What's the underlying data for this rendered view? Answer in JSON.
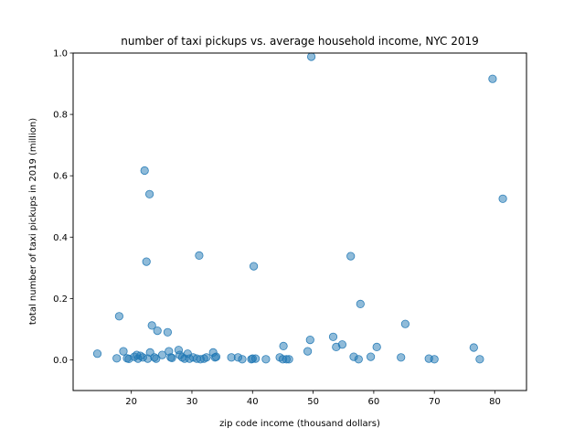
{
  "chart_data": {
    "type": "scatter",
    "title": "number of taxi pickups vs. average household income, NYC 2019",
    "xlabel": "zip code income (thousand dollars)",
    "ylabel": "total number of taxi pickups in 2019 (million)",
    "xlim": [
      10.4,
      85.2
    ],
    "ylim": [
      -0.1,
      1.0
    ],
    "xticks": [
      "20",
      "30",
      "40",
      "50",
      "60",
      "70",
      "80"
    ],
    "xtick_values": [
      20,
      30,
      40,
      50,
      60,
      70,
      80
    ],
    "yticks": [
      "0.0",
      "0.2",
      "0.4",
      "0.6",
      "0.8",
      "1.0"
    ],
    "ytick_values": [
      0.0,
      0.2,
      0.4,
      0.6,
      0.8,
      1.0
    ],
    "grid": false,
    "point_color": "#1f77b4",
    "point_alpha": 0.5,
    "points": [
      [
        14.4,
        0.02
      ],
      [
        17.6,
        0.005
      ],
      [
        18.0,
        0.142
      ],
      [
        18.7,
        0.028
      ],
      [
        19.3,
        0.005
      ],
      [
        19.6,
        0.003
      ],
      [
        20.5,
        0.01
      ],
      [
        20.9,
        0.016
      ],
      [
        21.1,
        0.004
      ],
      [
        21.5,
        0.013
      ],
      [
        21.9,
        0.008
      ],
      [
        22.2,
        0.617
      ],
      [
        22.5,
        0.32
      ],
      [
        22.7,
        0.004
      ],
      [
        23.0,
        0.54
      ],
      [
        23.1,
        0.024
      ],
      [
        23.4,
        0.112
      ],
      [
        23.8,
        0.008
      ],
      [
        24.1,
        0.004
      ],
      [
        24.3,
        0.095
      ],
      [
        25.1,
        0.016
      ],
      [
        26.0,
        0.09
      ],
      [
        26.2,
        0.028
      ],
      [
        26.5,
        0.008
      ],
      [
        26.7,
        0.006
      ],
      [
        27.8,
        0.032
      ],
      [
        28.0,
        0.016
      ],
      [
        28.4,
        0.008
      ],
      [
        28.8,
        0.004
      ],
      [
        29.3,
        0.02
      ],
      [
        29.6,
        0.004
      ],
      [
        30.2,
        0.008
      ],
      [
        30.8,
        0.004
      ],
      [
        31.2,
        0.34
      ],
      [
        31.4,
        0.002
      ],
      [
        32.0,
        0.004
      ],
      [
        32.4,
        0.008
      ],
      [
        33.5,
        0.024
      ],
      [
        33.8,
        0.008
      ],
      [
        34.0,
        0.01
      ],
      [
        36.5,
        0.008
      ],
      [
        37.6,
        0.008
      ],
      [
        38.3,
        0.002
      ],
      [
        39.8,
        0.002
      ],
      [
        40.0,
        0.004
      ],
      [
        40.2,
        0.305
      ],
      [
        40.5,
        0.004
      ],
      [
        42.2,
        0.002
      ],
      [
        44.5,
        0.008
      ],
      [
        45.0,
        0.002
      ],
      [
        45.1,
        0.045
      ],
      [
        45.6,
        0.002
      ],
      [
        46.0,
        0.002
      ],
      [
        49.1,
        0.028
      ],
      [
        49.5,
        0.065
      ],
      [
        49.7,
        0.988
      ],
      [
        53.3,
        0.075
      ],
      [
        53.8,
        0.042
      ],
      [
        54.8,
        0.05
      ],
      [
        56.2,
        0.338
      ],
      [
        56.7,
        0.01
      ],
      [
        57.5,
        0.002
      ],
      [
        57.8,
        0.182
      ],
      [
        59.5,
        0.01
      ],
      [
        60.5,
        0.042
      ],
      [
        64.5,
        0.008
      ],
      [
        65.2,
        0.117
      ],
      [
        69.1,
        0.004
      ],
      [
        70.0,
        0.002
      ],
      [
        76.5,
        0.04
      ],
      [
        77.5,
        0.002
      ],
      [
        79.6,
        0.916
      ],
      [
        81.3,
        0.525
      ]
    ]
  }
}
